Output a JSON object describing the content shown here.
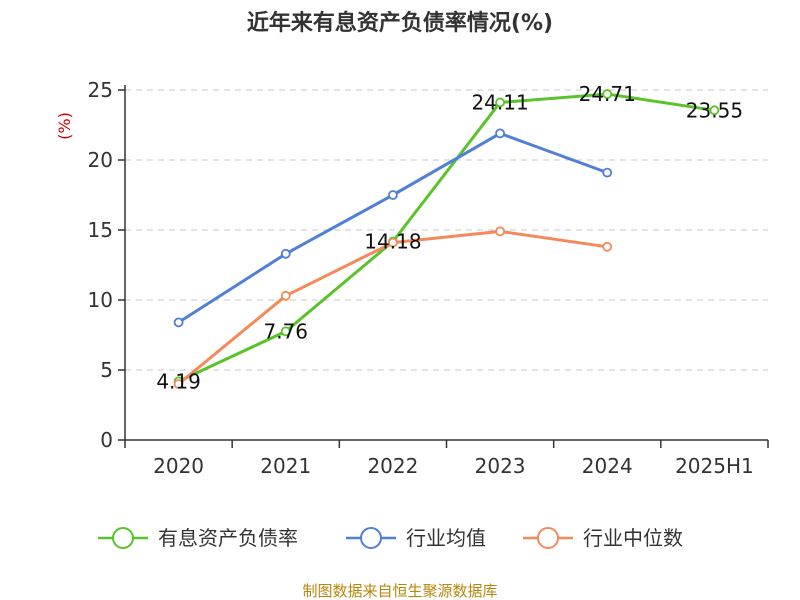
{
  "chart_data": {
    "type": "line",
    "title": "近年来有息资产负债率情况(%)",
    "ylabel": "(%)",
    "categories": [
      "2020",
      "2021",
      "2022",
      "2023",
      "2024",
      "2025H1"
    ],
    "ylim": [
      0,
      25
    ],
    "yticks": [
      0,
      5,
      10,
      15,
      20,
      25
    ],
    "grid": true,
    "legend_position": "bottom",
    "series": [
      {
        "name": "有息资产负债率",
        "color": "#5ac32a",
        "values": [
          4.19,
          7.76,
          14.18,
          24.11,
          24.71,
          23.55
        ],
        "show_labels": true
      },
      {
        "name": "行业均值",
        "color": "#4f7fd8",
        "values": [
          8.4,
          13.3,
          17.5,
          21.9,
          19.1,
          null
        ],
        "show_labels": false
      },
      {
        "name": "行业中位数",
        "color": "#f4895a",
        "values": [
          4.0,
          10.3,
          14.1,
          14.9,
          13.8,
          null
        ],
        "show_labels": false
      }
    ]
  },
  "source": "制图数据来自恒生聚源数据库"
}
